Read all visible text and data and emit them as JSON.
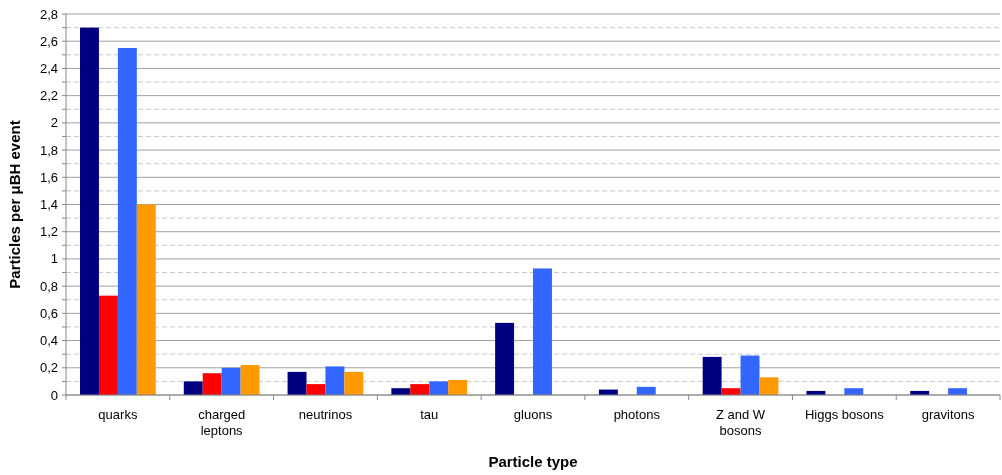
{
  "chart_data": {
    "type": "bar",
    "xlabel": "Particle type",
    "ylabel": "Particles per μBH event",
    "categories": [
      "quarks",
      "charged leptons",
      "neutrinos",
      "tau",
      "gluons",
      "photons",
      "Z and W bosons",
      "Higgs bosons",
      "gravitons"
    ],
    "series": [
      {
        "color": "#000080",
        "values": [
          2.7,
          0.1,
          0.17,
          0.05,
          0.53,
          0.04,
          0.28,
          0.03,
          0.03
        ]
      },
      {
        "color": "#ff0000",
        "values": [
          0.73,
          0.16,
          0.08,
          0.08,
          null,
          null,
          0.05,
          null,
          null
        ]
      },
      {
        "color": "#3366ff",
        "values": [
          2.55,
          0.2,
          0.21,
          0.1,
          0.93,
          0.06,
          0.29,
          0.05,
          0.05
        ]
      },
      {
        "color": "#ff9900",
        "values": [
          1.4,
          0.22,
          0.17,
          0.11,
          null,
          null,
          0.13,
          null,
          null
        ]
      }
    ],
    "ylim": [
      0,
      2.8
    ],
    "yticks": [
      {
        "value": 0,
        "label": "0"
      },
      {
        "value": 0.1,
        "label": null
      },
      {
        "value": 0.2,
        "label": "0,2"
      },
      {
        "value": 0.3,
        "label": null
      },
      {
        "value": 0.4,
        "label": "0,4"
      },
      {
        "value": 0.5,
        "label": null
      },
      {
        "value": 0.6,
        "label": "0,6"
      },
      {
        "value": 0.7,
        "label": null
      },
      {
        "value": 0.8,
        "label": "0,8"
      },
      {
        "value": 0.9,
        "label": null
      },
      {
        "value": 1,
        "label": "1"
      },
      {
        "value": 1.1,
        "label": null
      },
      {
        "value": 1.2,
        "label": "1,2"
      },
      {
        "value": 1.3,
        "label": null
      },
      {
        "value": 1.4,
        "label": "1,4"
      },
      {
        "value": 1.5,
        "label": null
      },
      {
        "value": 1.6,
        "label": "1,6"
      },
      {
        "value": 1.7,
        "label": null
      },
      {
        "value": 1.8,
        "label": "1,8"
      },
      {
        "value": 1.9,
        "label": null
      },
      {
        "value": 2,
        "label": "2"
      },
      {
        "value": 2.1,
        "label": null
      },
      {
        "value": 2.2,
        "label": "2,2"
      },
      {
        "value": 2.3,
        "label": null
      },
      {
        "value": 2.4,
        "label": "2,4"
      },
      {
        "value": 2.5,
        "label": null
      },
      {
        "value": 2.6,
        "label": "2,6"
      },
      {
        "value": 2.7,
        "label": null
      },
      {
        "value": 2.8,
        "label": "2,8"
      }
    ],
    "grid": true
  }
}
